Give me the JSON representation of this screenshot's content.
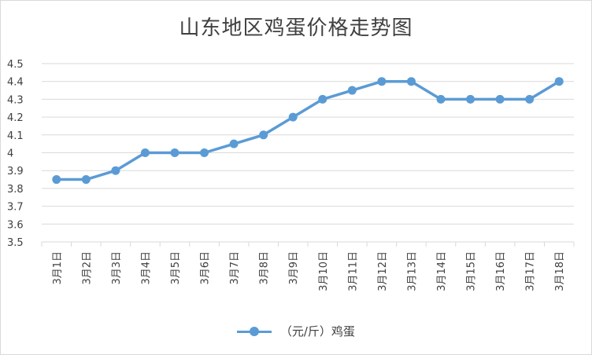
{
  "chart_data": {
    "type": "line",
    "title": "山东地区鸡蛋价格走势图",
    "categories": [
      "3月1日",
      "3月2日",
      "3月3日",
      "3月4日",
      "3月5日",
      "3月6日",
      "3月7日",
      "3月8日",
      "3月9日",
      "3月10日",
      "3月11日",
      "3月12日",
      "3月13日",
      "3月14日",
      "3月15日",
      "3月16日",
      "3月17日",
      "3月18日"
    ],
    "series": [
      {
        "name": "（元/斤）鸡蛋",
        "values": [
          3.85,
          3.85,
          3.9,
          4.0,
          4.0,
          4.0,
          4.05,
          4.1,
          4.2,
          4.3,
          4.35,
          4.4,
          4.4,
          4.3,
          4.3,
          4.3,
          4.3,
          4.4
        ]
      }
    ],
    "ylim": [
      3.5,
      4.5
    ],
    "yticks": [
      "3.5",
      "3.6",
      "3.7",
      "3.8",
      "3.9",
      "4",
      "4.1",
      "4.2",
      "4.3",
      "4.4",
      "4.5"
    ],
    "grid": true,
    "legend_position": "bottom",
    "series_color": "#5b9bd5"
  }
}
